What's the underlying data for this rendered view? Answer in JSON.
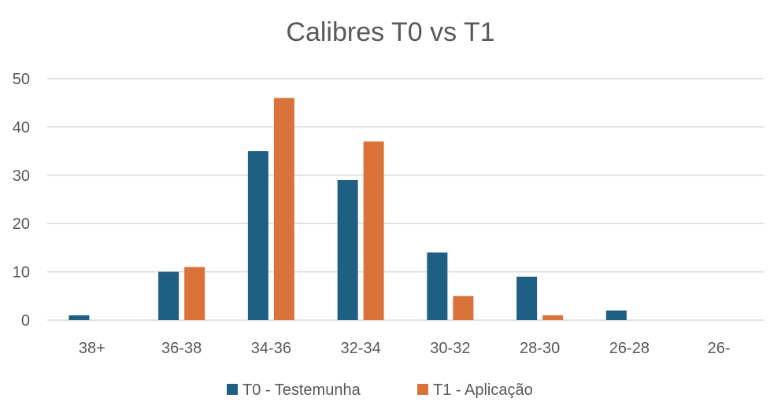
{
  "chart_data": {
    "type": "bar",
    "title": "Calibres T0 vs T1",
    "xlabel": "",
    "ylabel": "",
    "categories": [
      "38+",
      "36-38",
      "34-36",
      "32-34",
      "30-32",
      "28-30",
      "26-28",
      "26-"
    ],
    "series": [
      {
        "name": "T0 - Testemunha",
        "color": "#1f5f84",
        "values": [
          1,
          10,
          35,
          29,
          14,
          9,
          2,
          0
        ]
      },
      {
        "name": "T1 - Aplicação",
        "color": "#d9733a",
        "values": [
          0,
          11,
          46,
          37,
          5,
          1,
          0,
          0
        ]
      }
    ],
    "ylim": [
      0,
      50
    ],
    "yticks": [
      0,
      10,
      20,
      30,
      40,
      50
    ],
    "grid": true,
    "legend": "bottom"
  }
}
